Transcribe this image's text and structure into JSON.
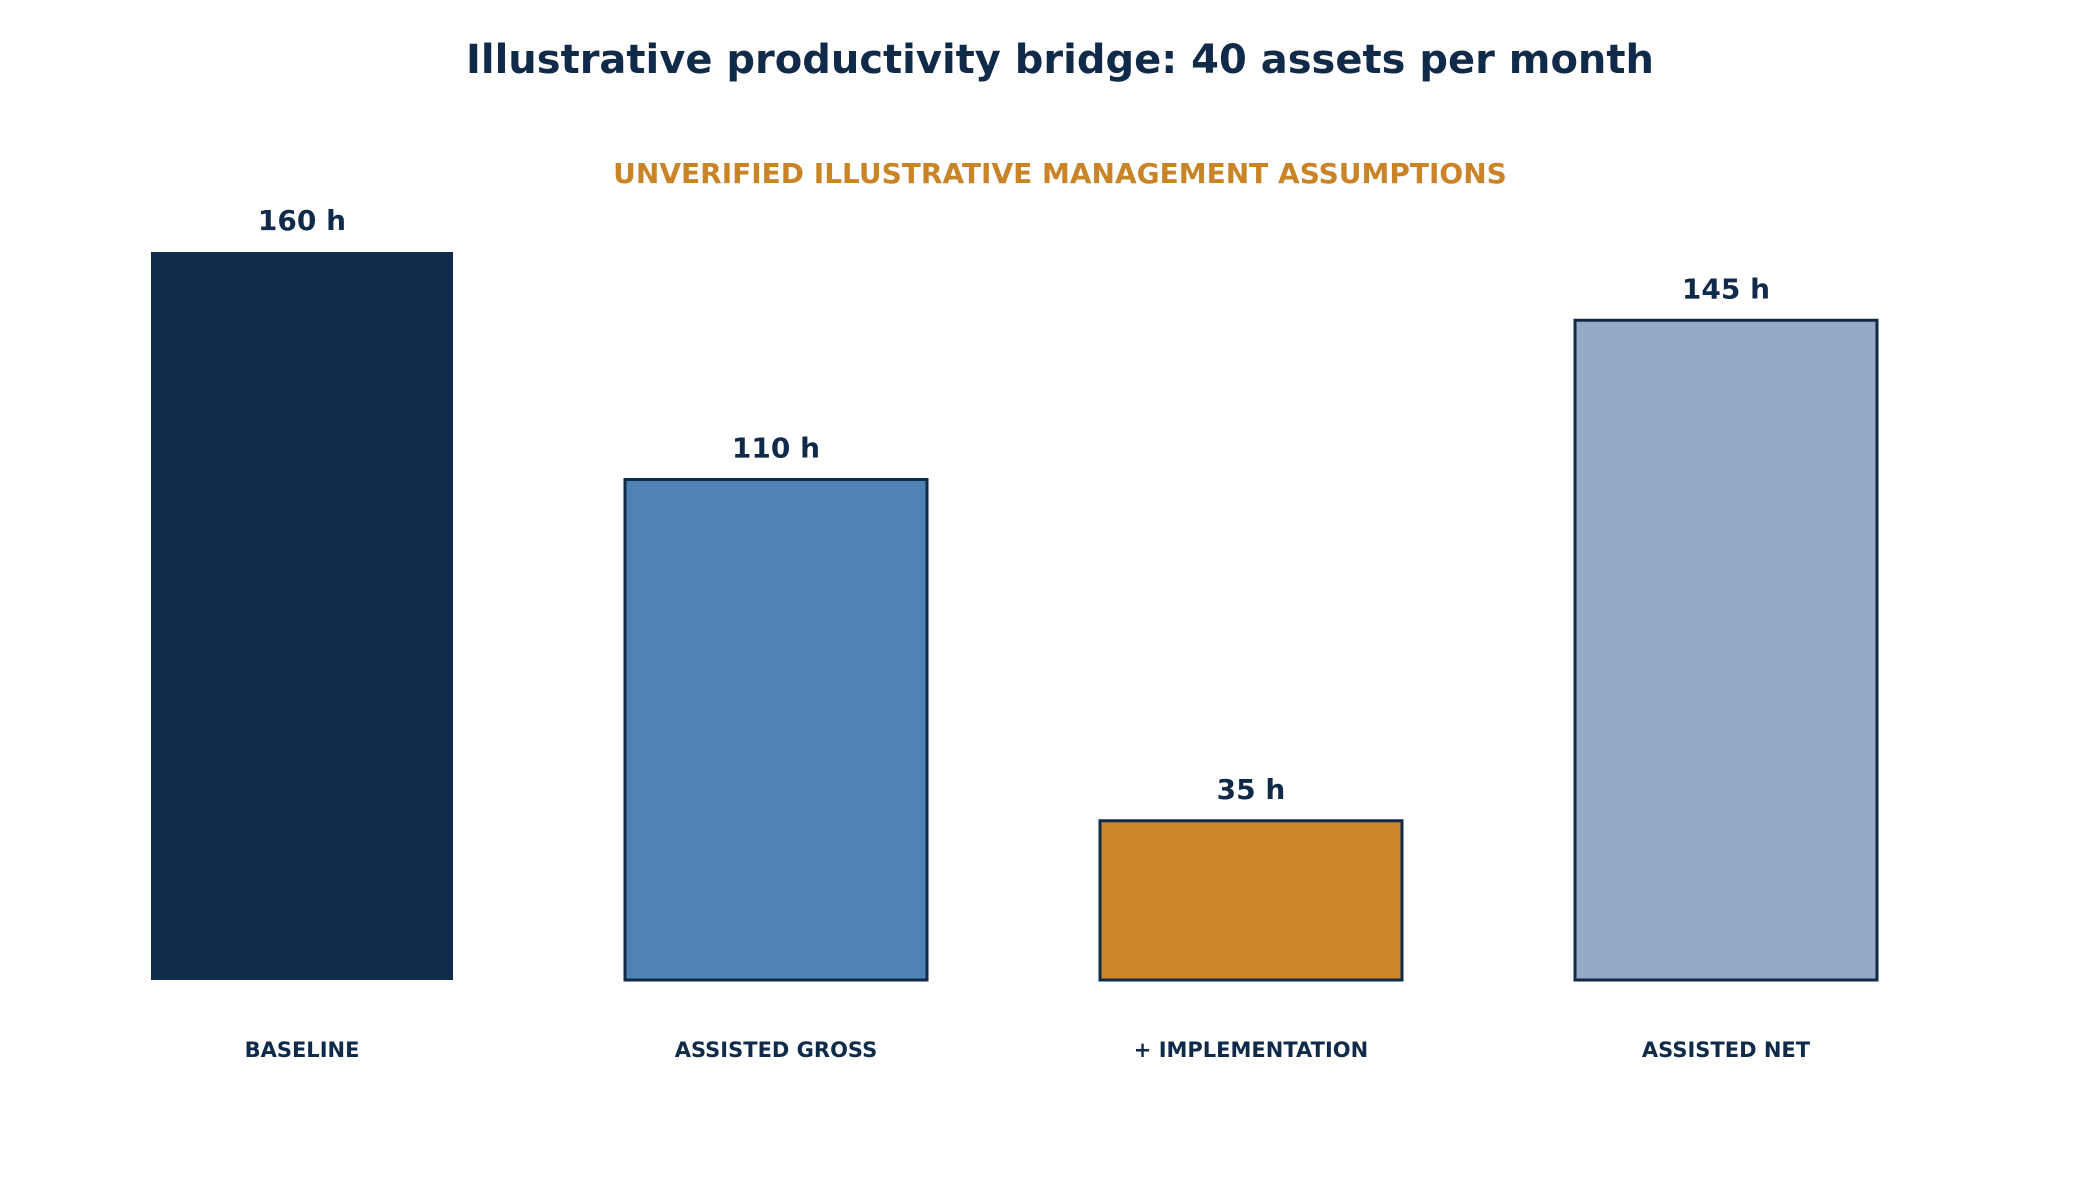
{
  "chart_data": {
    "type": "bar",
    "title": "Illustrative productivity bridge: 40 assets per month",
    "subtitle": "UNVERIFIED ILLUSTRATIVE MANAGEMENT ASSUMPTIONS",
    "categories": [
      "BASELINE",
      "ASSISTED GROSS",
      "+ IMPLEMENTATION",
      "ASSISTED NET"
    ],
    "values": [
      160,
      110,
      35,
      145
    ],
    "value_labels": [
      "160 h",
      "110 h",
      "35 h",
      "145 h"
    ],
    "unit": "h",
    "ylim": [
      0,
      160
    ],
    "grid": false,
    "legend": "none",
    "colors": [
      "#102A4A",
      "#5082B4",
      "#CC8528",
      "#95AAC7"
    ],
    "title_color": "#102A4A",
    "subtitle_color": "#C98428",
    "outline_color": "#102A4A"
  }
}
